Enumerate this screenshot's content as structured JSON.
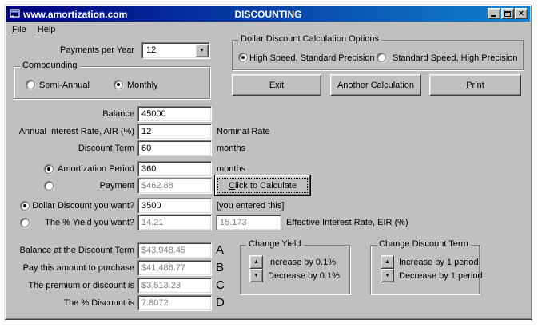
{
  "titlebar": {
    "app_title": "www.amortization.com",
    "dialog_title": "DISCOUNTING"
  },
  "menu": {
    "file": "File",
    "help": "Help"
  },
  "payments": {
    "label": "Payments per Year",
    "value": "12"
  },
  "compounding": {
    "title": "Compounding",
    "semi_annual": "Semi-Annual",
    "monthly": "Monthly",
    "selected": "Monthly"
  },
  "calc_options": {
    "title": "Dollar Discount Calculation Options",
    "high_speed": "High Speed, Standard  Precision",
    "standard_speed": "Standard Speed, High Precision",
    "selected": "High Speed, Standard  Precision"
  },
  "actions": {
    "exit": "Exit",
    "another": "Another Calculation",
    "print": "Print",
    "calculate": "Click to Calculate"
  },
  "fields": {
    "balance": {
      "label": "Balance",
      "value": "45000"
    },
    "air": {
      "label": "Annual Interest Rate,  AIR (%)",
      "value": "12",
      "note": "Nominal Rate"
    },
    "discount_term": {
      "label": "Discount Term",
      "value": "60",
      "note": "months"
    },
    "amortization": {
      "label": "Amortization Period",
      "value": "360",
      "note": "months",
      "selected": true
    },
    "payment": {
      "label": "Payment",
      "value": "$462.88",
      "selected": false
    },
    "dollar_discount": {
      "label": "Dollar Discount you want?",
      "value": "3500",
      "note": "[you entered this]",
      "selected": true
    },
    "yield": {
      "label": "The % Yield you want?",
      "value": "14.21",
      "eir_value": "15.173",
      "note": "Effective Interest Rate, EIR (%)",
      "selected": false
    }
  },
  "results": {
    "rows": [
      {
        "label": "Balance at the Discount Term",
        "value": "$43,948.45",
        "tag": "A"
      },
      {
        "label": "Pay this amount to purchase",
        "value": "$41,486.77",
        "tag": "B"
      },
      {
        "label": "The premium or discount is",
        "value": "$3,513.23",
        "tag": "C"
      },
      {
        "label": "The % Discount is",
        "value": "7.8072",
        "tag": "D"
      }
    ]
  },
  "change_yield": {
    "title": "Change Yield",
    "up": "Increase by 0.1%",
    "down": "Decrease by 0.1%"
  },
  "change_term": {
    "title": "Change Discount Term",
    "up": "Increase by 1 period",
    "down": "Decrease by 1 period"
  },
  "icons": {
    "combo_arrow": "▼",
    "spin_up": "▲",
    "spin_down": "▼",
    "close_glyph": "×"
  },
  "colors": {
    "titlebar_start": "#000080",
    "titlebar_end": "#1084d0",
    "window_bg": "#c0c0c0",
    "disabled_text": "#808080"
  }
}
